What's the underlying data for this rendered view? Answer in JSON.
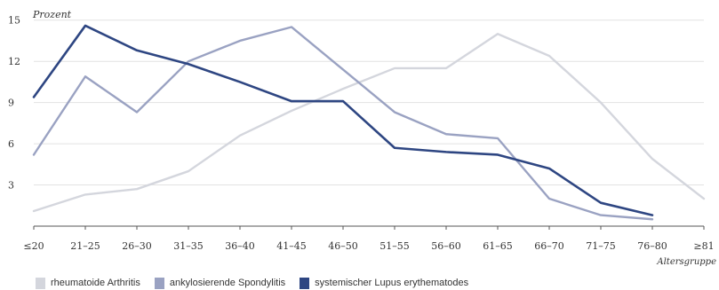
{
  "chart_data": {
    "type": "line",
    "ylabel": "Prozent",
    "xlabel": "Altersgruppe",
    "ylim": [
      0,
      15.5
    ],
    "yticks": [
      3,
      6,
      9,
      12,
      15
    ],
    "grid": true,
    "legend_position": "bottom",
    "categories": [
      "≤20",
      "21–25",
      "26–30",
      "31–35",
      "36–40",
      "41–45",
      "46–50",
      "51–55",
      "56–60",
      "61–65",
      "66–70",
      "71–75",
      "76–80",
      "≥81"
    ],
    "series": [
      {
        "name": "rheumatoide Arthritis",
        "color": "#d4d6dd",
        "values": [
          1.1,
          2.3,
          2.7,
          4.0,
          6.6,
          8.4,
          10.0,
          11.5,
          11.5,
          14.0,
          12.4,
          9.0,
          4.9,
          2.0
        ]
      },
      {
        "name": "ankylosierende Spondylitis",
        "color": "#9aa2c2",
        "values": [
          5.2,
          10.9,
          8.3,
          12.0,
          13.5,
          14.5,
          11.4,
          8.3,
          6.7,
          6.4,
          2.0,
          0.8,
          0.5,
          null
        ]
      },
      {
        "name": "systemischer Lupus erythematodes",
        "color": "#2e4682",
        "values": [
          9.4,
          14.6,
          12.8,
          11.8,
          10.5,
          9.1,
          9.1,
          5.7,
          5.4,
          5.2,
          4.2,
          1.7,
          0.8,
          null
        ]
      }
    ]
  }
}
